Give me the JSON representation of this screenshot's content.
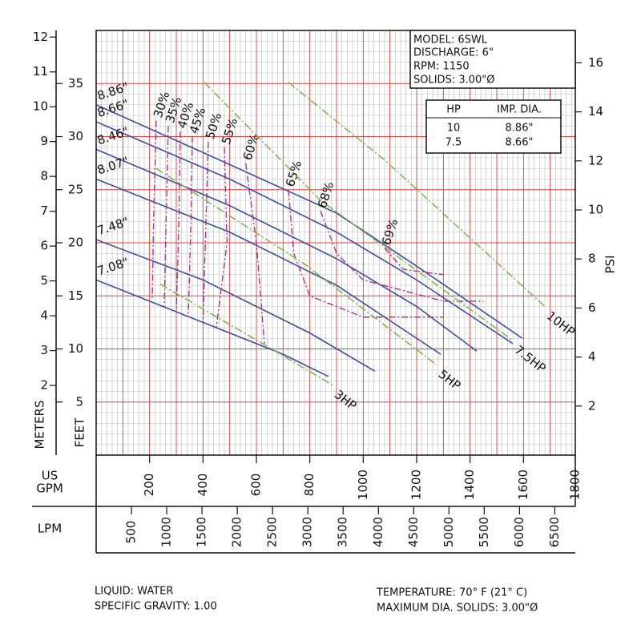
{
  "chart_data": {
    "type": "line",
    "x_label": "US\nGPM",
    "x_label_lines": [
      "US",
      "GPM"
    ],
    "lpm_label": "LPM",
    "y_label": "FEET",
    "meters_label": "METERS",
    "psi_label": "PSI",
    "xlim": [
      0,
      1800
    ],
    "xticks": [
      200,
      400,
      600,
      800,
      1000,
      1200,
      1400,
      1600,
      1800
    ],
    "ylim": [
      0,
      40
    ],
    "yticks": [
      5,
      10,
      15,
      20,
      25,
      30,
      35
    ],
    "meters_ylim": [
      0,
      12.19
    ],
    "meters_yticks": [
      2,
      3,
      4,
      5,
      6,
      7,
      8,
      9,
      10,
      11,
      12
    ],
    "psi_ylim": [
      0,
      17.32
    ],
    "psi_yticks": [
      2,
      4,
      6,
      8,
      10,
      12,
      14,
      16
    ],
    "lpm_xlim": [
      0,
      6813
    ],
    "lpm_xticks": [
      500,
      1000,
      1500,
      2000,
      2500,
      3000,
      3500,
      4000,
      4500,
      5000,
      5500,
      6000,
      6500
    ],
    "grid": true,
    "impeller_curves": [
      {
        "name": "8.86\"",
        "color": "#3a4f9e",
        "x": [
          0,
          400,
          900,
          1200,
          1596
        ],
        "values": [
          33,
          28.5,
          22.8,
          17.8,
          11
        ]
      },
      {
        "name": "8.66\"",
        "color": "#3a4f9e",
        "x": [
          0,
          500,
          900,
          1200,
          1560
        ],
        "values": [
          31.4,
          26,
          21,
          16.5,
          10.5
        ]
      },
      {
        "name": "8.46\"",
        "color": "#3a4f9e",
        "x": [
          0,
          500,
          900,
          1200,
          1425
        ],
        "values": [
          28.8,
          23.5,
          18.5,
          14,
          9.8
        ]
      },
      {
        "name": "8.07\"",
        "color": "#3a4f9e",
        "x": [
          0,
          500,
          900,
          1290
        ],
        "values": [
          26,
          21,
          16,
          9.5
        ]
      },
      {
        "name": "7.48\"",
        "color": "#3a4f9e",
        "x": [
          0,
          400,
          800,
          1044
        ],
        "values": [
          20.3,
          16.5,
          11.5,
          7.9
        ]
      },
      {
        "name": "7.08\"",
        "color": "#3a4f9e",
        "x": [
          0,
          400,
          700,
          870
        ],
        "values": [
          16.5,
          12.5,
          9.5,
          7.4
        ]
      }
    ],
    "efficiency_curves": [
      {
        "name": "30%",
        "color": "#b0308a",
        "x": [
          225,
          215,
          210
        ],
        "values": [
          31.5,
          22,
          14.6
        ]
      },
      {
        "name": "35%",
        "color": "#b0308a",
        "x": [
          270,
          262,
          255
        ],
        "values": [
          31,
          22,
          14
        ]
      },
      {
        "name": "40%",
        "color": "#b0308a",
        "x": [
          315,
          310,
          300
        ],
        "values": [
          30.5,
          22,
          13.5
        ]
      },
      {
        "name": "45%",
        "color": "#b0308a",
        "x": [
          360,
          355,
          345
        ],
        "values": [
          30,
          22,
          13
        ]
      },
      {
        "name": "50%",
        "color": "#b0308a",
        "x": [
          420,
          410,
          400
        ],
        "values": [
          29.5,
          21,
          12.5
        ]
      },
      {
        "name": "55%",
        "color": "#b0308a",
        "x": [
          480,
          490,
          450
        ],
        "values": [
          29,
          20,
          12
        ]
      },
      {
        "name": "60%",
        "color": "#b0308a",
        "x": [
          560,
          600,
          630
        ],
        "values": [
          27.5,
          20,
          10.5
        ]
      },
      {
        "name": "65%",
        "color": "#b0308a",
        "x": [
          720,
          740,
          800,
          1000,
          1300
        ],
        "values": [
          25,
          19,
          15,
          13,
          13
        ]
      },
      {
        "name": "68%",
        "color": "#b0308a",
        "x": [
          840,
          900,
          1000,
          1300,
          1450
        ],
        "values": [
          23,
          19,
          16.5,
          14.5,
          14.5
        ]
      },
      {
        "name": "69%",
        "color": "#b0308a",
        "x": [
          1080,
          1150,
          1300
        ],
        "values": [
          19.5,
          17.5,
          17
        ]
      }
    ],
    "horsepower_curves": [
      {
        "name": "10HP",
        "color": "#6db33f",
        "x": [
          720,
          1080,
          1680
        ],
        "values": [
          35.1,
          27.8,
          14
        ]
      },
      {
        "name": "7.5HP",
        "color": "#6db33f",
        "x": [
          405,
          840,
          1560
        ],
        "values": [
          35.1,
          24,
          10.8
        ]
      },
      {
        "name": "5HP",
        "color": "#6db33f",
        "x": [
          225,
          780,
          1275
        ],
        "values": [
          27,
          18,
          8.5
        ]
      },
      {
        "name": "3HP",
        "color": "#6db33f",
        "x": [
          240,
          630,
          885
        ],
        "values": [
          16.1,
          10.4,
          6.6
        ]
      }
    ]
  },
  "info_box": [
    "MODEL: 6SWL",
    "DISCHARGE: 6\"",
    "RPM: 1150",
    "SOLIDS: 3.00\"Ø"
  ],
  "hp_table": {
    "header": [
      "HP",
      "IMP. DIA."
    ],
    "rows": [
      [
        "10",
        "8.86\""
      ],
      [
        "7.5",
        "8.66\""
      ]
    ]
  },
  "footer": {
    "liquid": "LIQUID: WATER",
    "gravity": "SPECIFIC GRAVITY: 1.00",
    "temperature": "TEMPERATURE: 70° F (21° C)",
    "solids": "MAXIMUM DIA. SOLIDS: 3.00\"Ø"
  }
}
